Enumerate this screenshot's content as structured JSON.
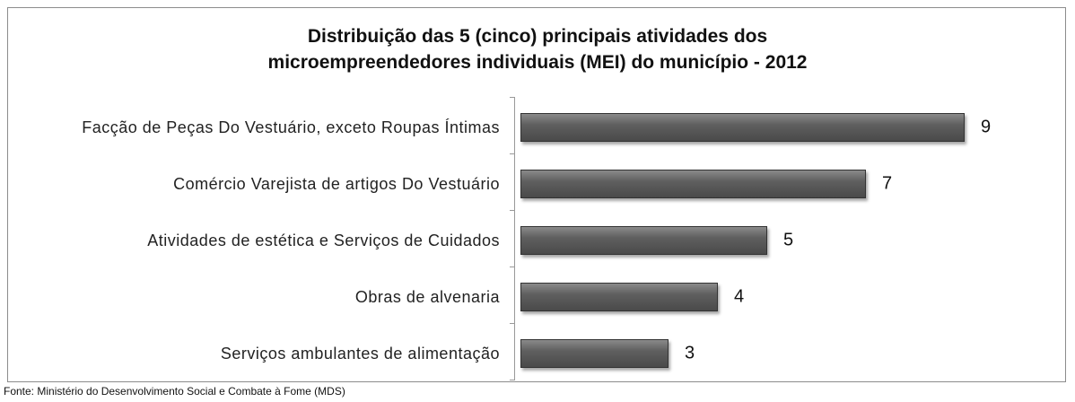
{
  "chart_data": {
    "type": "barh",
    "title": "Distribuição das 5 (cinco) principais atividades dos microempreendedores individuais (MEI) do município - 2012",
    "categories": [
      "Facção de Peças Do Vestuário, exceto Roupas Íntimas",
      "Comércio Varejista de artigos Do Vestuário",
      "Atividades de estética e Serviços  de Cuidados",
      "Obras de alvenaria",
      "Serviços ambulantes de alimentação"
    ],
    "values": [
      9,
      7,
      5,
      4,
      3
    ],
    "color": "#5f5f5f",
    "xlim": [
      0,
      9
    ],
    "source": "Fonte: Ministério do Desenvolvimento Social e Combate à Fome (MDS)"
  }
}
